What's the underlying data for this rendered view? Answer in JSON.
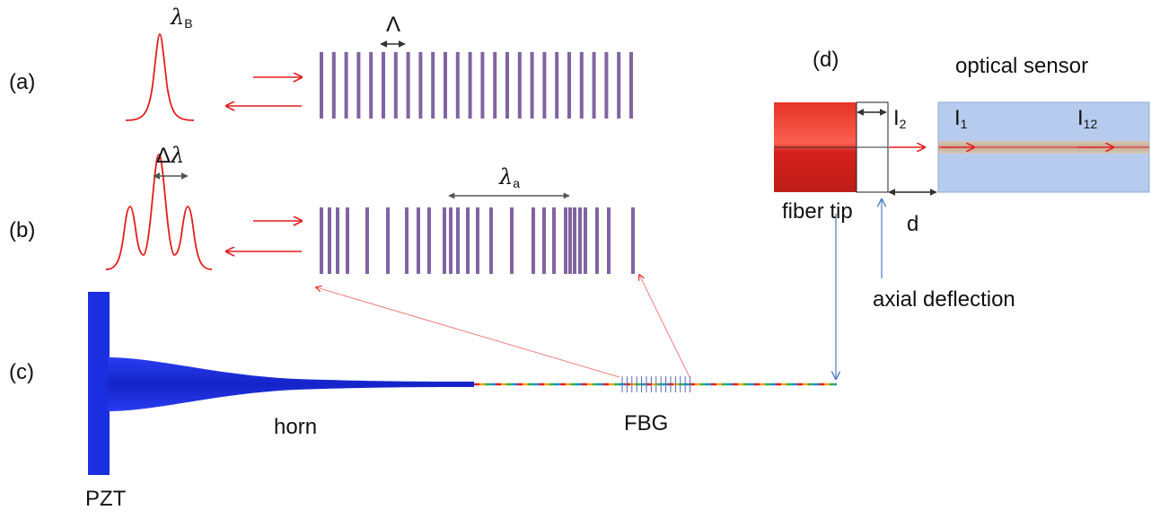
{
  "panels": {
    "a": "(a)",
    "b": "(b)",
    "c": "(c)",
    "d": "(d)"
  },
  "symbols": {
    "lambda_B": {
      "symbol": "λ",
      "sub": "B"
    },
    "Lambda": "Λ",
    "delta_lambda": {
      "prefix": "Δ",
      "symbol": "λ"
    },
    "lambda_a": {
      "symbol": "λ",
      "sub": "a"
    }
  },
  "labels": {
    "pzt": "PZT",
    "horn": "horn",
    "fbg": "FBG",
    "optical_sensor": "optical sensor",
    "fiber_tip": "fiber tip",
    "d": "d",
    "axial_deflection": "axial deflection"
  },
  "intensities": {
    "I2": {
      "base": "I",
      "sub": "2"
    },
    "I1": {
      "base": "I",
      "sub": "1"
    },
    "I12": {
      "base": "I",
      "sub": "12"
    }
  },
  "colors": {
    "grating": "#8064a2",
    "arrow_red": "#e41e1e",
    "guide_blue": "#4a7cc3",
    "horn_blue": "#1a2fe0",
    "fiber_tip_red": "#dd1a12",
    "sensor_fill": "#b6cbee"
  }
}
